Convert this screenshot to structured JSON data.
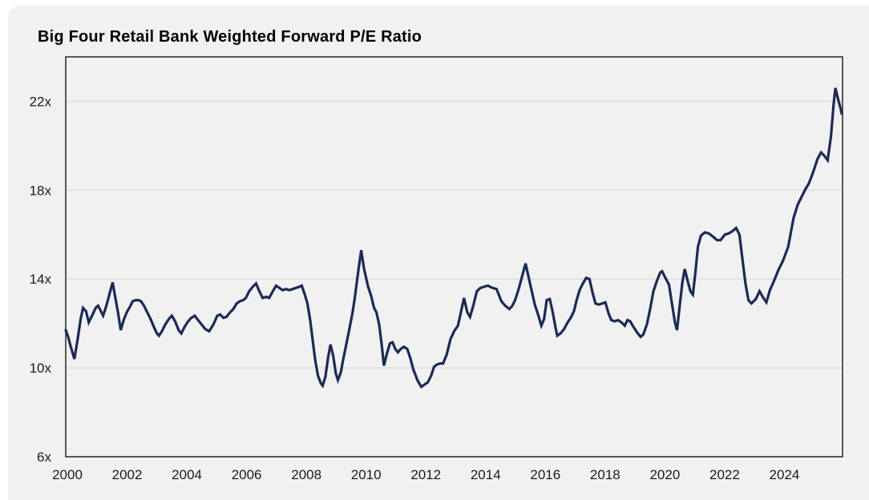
{
  "page": {
    "background": "#ffffff",
    "panel_background": "#f1f1f2"
  },
  "chart_data": {
    "type": "line",
    "title": "Big Four Retail Bank Weighted Forward P/E Ratio",
    "xlabel": "",
    "ylabel": "",
    "legend": "none",
    "grid": "horizontal-only",
    "line_color": "#1b2a55",
    "grid_color": "#d9d9d9",
    "frame_color": "#333333",
    "x_range": [
      2000,
      2026
    ],
    "y_range": [
      6,
      24
    ],
    "x_ticks": [
      {
        "value": 2000,
        "label": "2000"
      },
      {
        "value": 2002,
        "label": "2002"
      },
      {
        "value": 2004,
        "label": "2004"
      },
      {
        "value": 2006,
        "label": "2006"
      },
      {
        "value": 2008,
        "label": "2008"
      },
      {
        "value": 2010,
        "label": "2010"
      },
      {
        "value": 2012,
        "label": "2012"
      },
      {
        "value": 2014,
        "label": "2014"
      },
      {
        "value": 2016,
        "label": "2016"
      },
      {
        "value": 2018,
        "label": "2018"
      },
      {
        "value": 2020,
        "label": "2020"
      },
      {
        "value": 2022,
        "label": "2022"
      },
      {
        "value": 2024,
        "label": "2024"
      }
    ],
    "y_ticks": [
      {
        "value": 6,
        "label": "6x",
        "gridline": false
      },
      {
        "value": 10,
        "label": "10x",
        "gridline": true
      },
      {
        "value": 14,
        "label": "14x",
        "gridline": true
      },
      {
        "value": 18,
        "label": "18x",
        "gridline": true
      },
      {
        "value": 22,
        "label": "22x",
        "gridline": true
      }
    ],
    "series": [
      {
        "name": "Weighted Forward P/E Ratio",
        "points": [
          [
            2000.0,
            11.7
          ],
          [
            2000.08,
            11.4
          ],
          [
            2000.17,
            10.95
          ],
          [
            2000.29,
            10.4
          ],
          [
            2000.4,
            11.3
          ],
          [
            2000.5,
            12.2
          ],
          [
            2000.58,
            12.7
          ],
          [
            2000.68,
            12.55
          ],
          [
            2000.77,
            12.05
          ],
          [
            2000.88,
            12.35
          ],
          [
            2001.0,
            12.7
          ],
          [
            2001.08,
            12.8
          ],
          [
            2001.16,
            12.6
          ],
          [
            2001.25,
            12.35
          ],
          [
            2001.35,
            12.75
          ],
          [
            2001.46,
            13.3
          ],
          [
            2001.57,
            13.85
          ],
          [
            2001.66,
            13.15
          ],
          [
            2001.75,
            12.5
          ],
          [
            2001.84,
            11.7
          ],
          [
            2001.95,
            12.2
          ],
          [
            2002.06,
            12.55
          ],
          [
            2002.15,
            12.75
          ],
          [
            2002.24,
            13.0
          ],
          [
            2002.34,
            13.05
          ],
          [
            2002.43,
            13.05
          ],
          [
            2002.52,
            13.0
          ],
          [
            2002.62,
            12.8
          ],
          [
            2002.73,
            12.5
          ],
          [
            2002.84,
            12.2
          ],
          [
            2002.95,
            11.85
          ],
          [
            2003.05,
            11.55
          ],
          [
            2003.12,
            11.45
          ],
          [
            2003.22,
            11.65
          ],
          [
            2003.33,
            11.95
          ],
          [
            2003.45,
            12.2
          ],
          [
            2003.55,
            12.35
          ],
          [
            2003.66,
            12.1
          ],
          [
            2003.78,
            11.7
          ],
          [
            2003.87,
            11.55
          ],
          [
            2003.98,
            11.85
          ],
          [
            2004.1,
            12.1
          ],
          [
            2004.2,
            12.25
          ],
          [
            2004.32,
            12.35
          ],
          [
            2004.43,
            12.15
          ],
          [
            2004.55,
            11.95
          ],
          [
            2004.67,
            11.75
          ],
          [
            2004.8,
            11.65
          ],
          [
            2004.94,
            11.95
          ],
          [
            2005.07,
            12.35
          ],
          [
            2005.17,
            12.4
          ],
          [
            2005.28,
            12.25
          ],
          [
            2005.38,
            12.3
          ],
          [
            2005.5,
            12.5
          ],
          [
            2005.61,
            12.65
          ],
          [
            2005.72,
            12.9
          ],
          [
            2005.83,
            13.0
          ],
          [
            2005.94,
            13.05
          ],
          [
            2006.03,
            13.15
          ],
          [
            2006.14,
            13.45
          ],
          [
            2006.26,
            13.65
          ],
          [
            2006.37,
            13.8
          ],
          [
            2006.48,
            13.45
          ],
          [
            2006.59,
            13.15
          ],
          [
            2006.71,
            13.2
          ],
          [
            2006.81,
            13.15
          ],
          [
            2006.93,
            13.45
          ],
          [
            2007.04,
            13.7
          ],
          [
            2007.15,
            13.6
          ],
          [
            2007.26,
            13.5
          ],
          [
            2007.37,
            13.55
          ],
          [
            2007.48,
            13.5
          ],
          [
            2007.6,
            13.55
          ],
          [
            2007.71,
            13.6
          ],
          [
            2007.82,
            13.65
          ],
          [
            2007.9,
            13.7
          ],
          [
            2008.0,
            13.3
          ],
          [
            2008.09,
            12.9
          ],
          [
            2008.18,
            12.15
          ],
          [
            2008.27,
            11.2
          ],
          [
            2008.35,
            10.35
          ],
          [
            2008.44,
            9.65
          ],
          [
            2008.54,
            9.3
          ],
          [
            2008.6,
            9.2
          ],
          [
            2008.69,
            9.6
          ],
          [
            2008.78,
            10.45
          ],
          [
            2008.86,
            11.05
          ],
          [
            2008.95,
            10.55
          ],
          [
            2009.04,
            9.75
          ],
          [
            2009.11,
            9.45
          ],
          [
            2009.21,
            9.8
          ],
          [
            2009.29,
            10.4
          ],
          [
            2009.38,
            11.0
          ],
          [
            2009.5,
            11.8
          ],
          [
            2009.6,
            12.5
          ],
          [
            2009.67,
            13.1
          ],
          [
            2009.78,
            14.25
          ],
          [
            2009.89,
            15.3
          ],
          [
            2009.98,
            14.5
          ],
          [
            2010.12,
            13.65
          ],
          [
            2010.22,
            13.25
          ],
          [
            2010.32,
            12.7
          ],
          [
            2010.4,
            12.5
          ],
          [
            2010.49,
            11.95
          ],
          [
            2010.58,
            11.0
          ],
          [
            2010.65,
            10.1
          ],
          [
            2010.74,
            10.6
          ],
          [
            2010.85,
            11.1
          ],
          [
            2010.94,
            11.15
          ],
          [
            2011.03,
            10.85
          ],
          [
            2011.12,
            10.7
          ],
          [
            2011.21,
            10.85
          ],
          [
            2011.32,
            10.95
          ],
          [
            2011.43,
            10.85
          ],
          [
            2011.53,
            10.45
          ],
          [
            2011.63,
            9.95
          ],
          [
            2011.77,
            9.45
          ],
          [
            2011.9,
            9.15
          ],
          [
            2012.01,
            9.25
          ],
          [
            2012.12,
            9.35
          ],
          [
            2012.23,
            9.65
          ],
          [
            2012.33,
            10.05
          ],
          [
            2012.42,
            10.15
          ],
          [
            2012.53,
            10.2
          ],
          [
            2012.63,
            10.2
          ],
          [
            2012.75,
            10.6
          ],
          [
            2012.88,
            11.3
          ],
          [
            2013.0,
            11.65
          ],
          [
            2013.13,
            11.9
          ],
          [
            2013.33,
            13.15
          ],
          [
            2013.44,
            12.5
          ],
          [
            2013.53,
            12.3
          ],
          [
            2013.64,
            12.8
          ],
          [
            2013.76,
            13.45
          ],
          [
            2013.88,
            13.6
          ],
          [
            2014.0,
            13.65
          ],
          [
            2014.13,
            13.7
          ],
          [
            2014.28,
            13.6
          ],
          [
            2014.42,
            13.55
          ],
          [
            2014.58,
            13.0
          ],
          [
            2014.71,
            12.8
          ],
          [
            2014.85,
            12.65
          ],
          [
            2014.95,
            12.8
          ],
          [
            2015.04,
            13.05
          ],
          [
            2015.16,
            13.55
          ],
          [
            2015.28,
            14.15
          ],
          [
            2015.39,
            14.7
          ],
          [
            2015.49,
            14.1
          ],
          [
            2015.58,
            13.55
          ],
          [
            2015.7,
            12.85
          ],
          [
            2015.81,
            12.4
          ],
          [
            2015.92,
            11.9
          ],
          [
            2016.01,
            12.2
          ],
          [
            2016.1,
            13.05
          ],
          [
            2016.2,
            13.1
          ],
          [
            2016.3,
            12.5
          ],
          [
            2016.39,
            11.85
          ],
          [
            2016.45,
            11.45
          ],
          [
            2016.56,
            11.55
          ],
          [
            2016.68,
            11.75
          ],
          [
            2016.8,
            12.05
          ],
          [
            2016.9,
            12.25
          ],
          [
            2017.01,
            12.55
          ],
          [
            2017.1,
            13.05
          ],
          [
            2017.2,
            13.5
          ],
          [
            2017.31,
            13.8
          ],
          [
            2017.42,
            14.05
          ],
          [
            2017.53,
            14.0
          ],
          [
            2017.64,
            13.35
          ],
          [
            2017.73,
            12.9
          ],
          [
            2017.84,
            12.85
          ],
          [
            2017.96,
            12.9
          ],
          [
            2018.06,
            12.95
          ],
          [
            2018.17,
            12.45
          ],
          [
            2018.26,
            12.15
          ],
          [
            2018.38,
            12.1
          ],
          [
            2018.49,
            12.15
          ],
          [
            2018.6,
            12.05
          ],
          [
            2018.71,
            11.9
          ],
          [
            2018.8,
            12.15
          ],
          [
            2018.89,
            12.1
          ],
          [
            2019.0,
            11.85
          ],
          [
            2019.12,
            11.6
          ],
          [
            2019.24,
            11.4
          ],
          [
            2019.33,
            11.5
          ],
          [
            2019.45,
            11.95
          ],
          [
            2019.56,
            12.65
          ],
          [
            2019.67,
            13.45
          ],
          [
            2019.78,
            13.9
          ],
          [
            2019.9,
            14.3
          ],
          [
            2019.96,
            14.35
          ],
          [
            2020.07,
            14.05
          ],
          [
            2020.19,
            13.75
          ],
          [
            2020.3,
            12.8
          ],
          [
            2020.39,
            12.05
          ],
          [
            2020.46,
            11.7
          ],
          [
            2020.55,
            12.8
          ],
          [
            2020.64,
            13.85
          ],
          [
            2020.72,
            14.45
          ],
          [
            2020.82,
            13.9
          ],
          [
            2020.91,
            13.45
          ],
          [
            2020.99,
            13.3
          ],
          [
            2021.08,
            14.35
          ],
          [
            2021.16,
            15.45
          ],
          [
            2021.26,
            15.95
          ],
          [
            2021.39,
            16.1
          ],
          [
            2021.53,
            16.05
          ],
          [
            2021.67,
            15.9
          ],
          [
            2021.8,
            15.75
          ],
          [
            2021.92,
            15.75
          ],
          [
            2022.06,
            16.0
          ],
          [
            2022.19,
            16.05
          ],
          [
            2022.31,
            16.15
          ],
          [
            2022.44,
            16.3
          ],
          [
            2022.55,
            16.0
          ],
          [
            2022.65,
            14.9
          ],
          [
            2022.75,
            13.8
          ],
          [
            2022.85,
            13.05
          ],
          [
            2022.95,
            12.9
          ],
          [
            2023.1,
            13.1
          ],
          [
            2023.22,
            13.45
          ],
          [
            2023.35,
            13.15
          ],
          [
            2023.45,
            12.95
          ],
          [
            2023.57,
            13.5
          ],
          [
            2023.7,
            13.9
          ],
          [
            2023.85,
            14.4
          ],
          [
            2024.0,
            14.8
          ],
          [
            2024.18,
            15.45
          ],
          [
            2024.36,
            16.75
          ],
          [
            2024.5,
            17.35
          ],
          [
            2024.63,
            17.7
          ],
          [
            2024.76,
            18.05
          ],
          [
            2024.87,
            18.3
          ],
          [
            2024.96,
            18.6
          ],
          [
            2025.05,
            18.95
          ],
          [
            2025.16,
            19.4
          ],
          [
            2025.28,
            19.7
          ],
          [
            2025.39,
            19.55
          ],
          [
            2025.5,
            19.35
          ],
          [
            2025.61,
            20.4
          ],
          [
            2025.7,
            21.85
          ],
          [
            2025.76,
            22.6
          ],
          [
            2025.85,
            22.1
          ],
          [
            2025.94,
            21.65
          ],
          [
            2025.97,
            21.45
          ]
        ]
      }
    ]
  }
}
